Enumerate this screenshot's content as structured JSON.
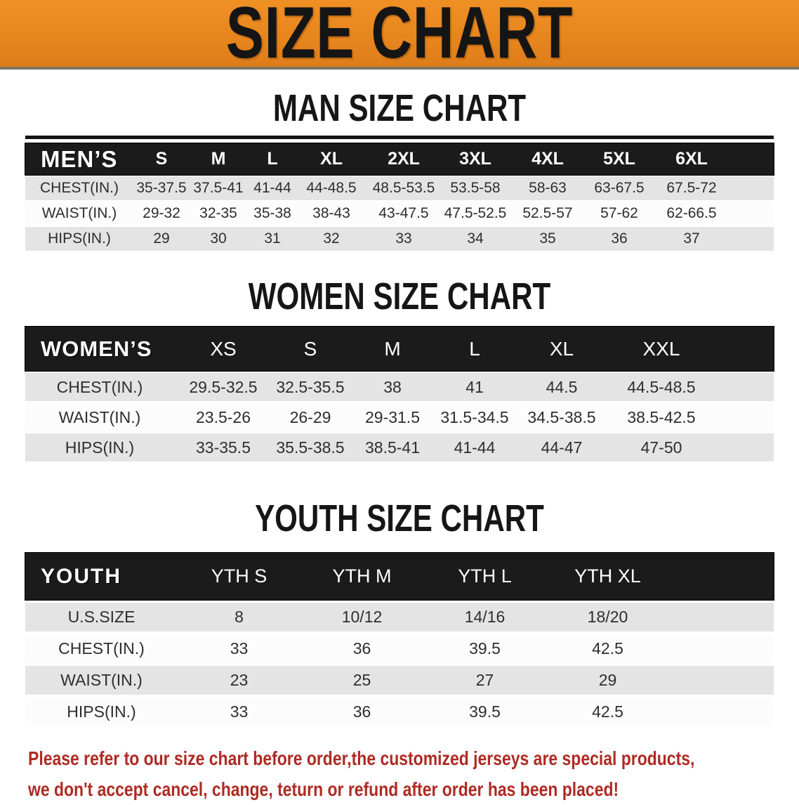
{
  "banner": {
    "title": "SIZE CHART",
    "bg_color": "#E8861E",
    "text_color": "#151515"
  },
  "sections": {
    "men": {
      "heading": "MAN SIZE CHART"
    },
    "women": {
      "heading": "WOMEN SIZE CHART"
    },
    "youth": {
      "heading": "YOUTH SIZE CHART"
    }
  },
  "men_table": {
    "label": "MEN’S",
    "columns": [
      "S",
      "M",
      "L",
      "XL",
      "2XL",
      "3XL",
      "4XL",
      "5XL",
      "6XL"
    ],
    "rows": [
      {
        "label": "CHEST(IN.)",
        "values": [
          "35-37.5",
          "37.5-41",
          "41-44",
          "44-48.5",
          "48.5-53.5",
          "53.5-58",
          "58-63",
          "63-67.5",
          "67.5-72"
        ]
      },
      {
        "label": "WAIST(IN.)",
        "values": [
          "29-32",
          "32-35",
          "35-38",
          "38-43",
          "43-47.5",
          "47.5-52.5",
          "52.5-57",
          "57-62",
          "62-66.5"
        ]
      },
      {
        "label": "HIPS(IN.)",
        "values": [
          "29",
          "30",
          "31",
          "32",
          "33",
          "34",
          "35",
          "36",
          "37"
        ]
      }
    ]
  },
  "women_table": {
    "label": "WOMEN’S",
    "columns": [
      "XS",
      "S",
      "M",
      "L",
      "XL",
      "XXL"
    ],
    "rows": [
      {
        "label": "CHEST(IN.)",
        "values": [
          "29.5-32.5",
          "32.5-35.5",
          "38",
          "41",
          "44.5",
          "44.5-48.5"
        ]
      },
      {
        "label": "WAIST(IN.)",
        "values": [
          "23.5-26",
          "26-29",
          "29-31.5",
          "31.5-34.5",
          "34.5-38.5",
          "38.5-42.5"
        ]
      },
      {
        "label": "HIPS(IN.)",
        "values": [
          "33-35.5",
          "35.5-38.5",
          "38.5-41",
          "41-44",
          "44-47",
          "47-50"
        ]
      }
    ]
  },
  "youth_table": {
    "label": "YOUTH",
    "columns": [
      "YTH S",
      "YTH M",
      "YTH L",
      "YTH XL"
    ],
    "rows": [
      {
        "label": "U.S.SIZE",
        "values": [
          "8",
          "10/12",
          "14/16",
          "18/20"
        ]
      },
      {
        "label": "CHEST(IN.)",
        "values": [
          "33",
          "36",
          "39.5",
          "42.5"
        ]
      },
      {
        "label": "WAIST(IN.)",
        "values": [
          "23",
          "25",
          "27",
          "29"
        ]
      },
      {
        "label": "HIPS(IN.)",
        "values": [
          "33",
          "36",
          "39.5",
          "42.5"
        ]
      }
    ]
  },
  "note": {
    "line1": "Please refer to our size chart before order,the customized jerseys are special products,",
    "line2": "we don't accept cancel, change, teturn or refund after order has been placed!",
    "text_color": "#AE2B24"
  },
  "style_colors": {
    "header_band": "#1B1B1B",
    "row_gray": "#E4E4E4",
    "row_white": "#FCFCFC"
  }
}
